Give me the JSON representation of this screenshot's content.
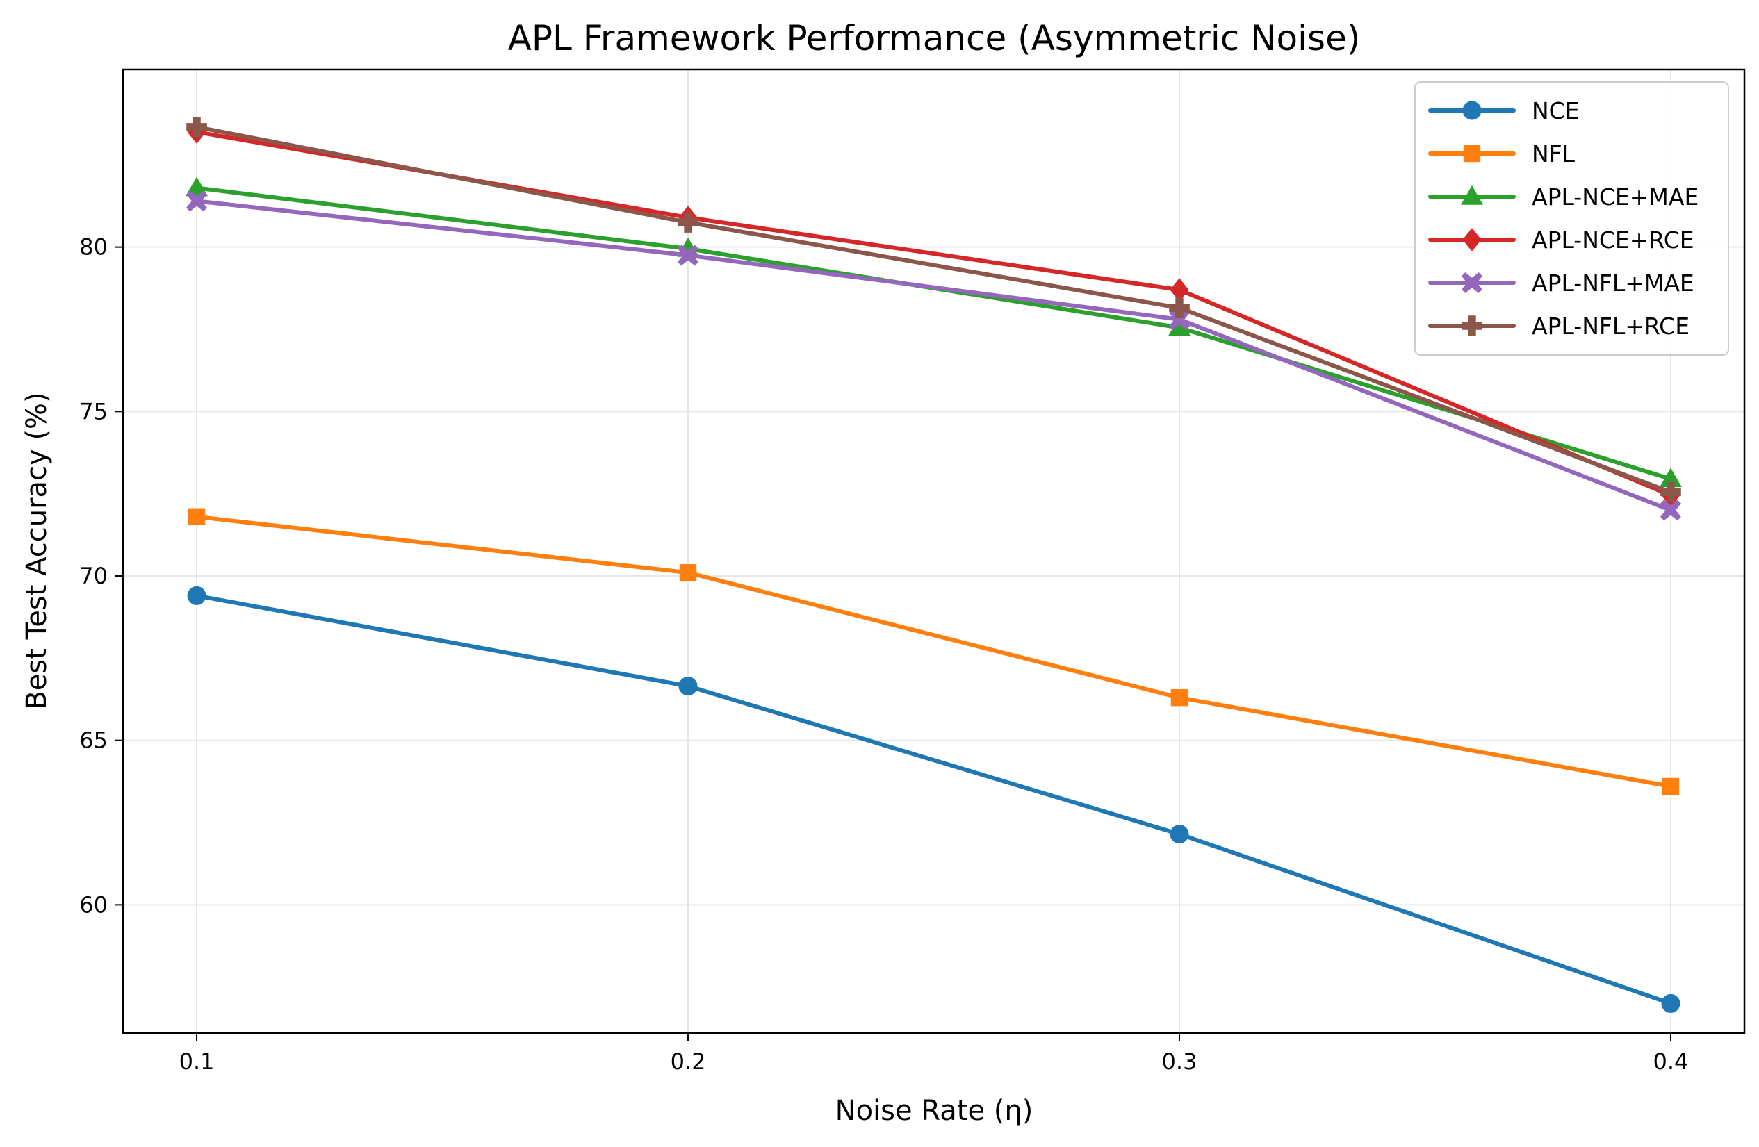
{
  "chart_data": {
    "type": "line",
    "title": "APL Framework Performance (Asymmetric Noise)",
    "xlabel": "Noise Rate (η)",
    "ylabel": "Best Test Accuracy (%)",
    "x": [
      0.1,
      0.2,
      0.3,
      0.4
    ],
    "x_tick_labels": [
      "0.1",
      "0.2",
      "0.3",
      "0.4"
    ],
    "y_ticks": [
      60,
      65,
      70,
      75,
      80
    ],
    "y_tick_labels": [
      "60",
      "65",
      "70",
      "75",
      "80"
    ],
    "xlim": [
      0.085,
      0.415
    ],
    "ylim": [
      56.1,
      85.4
    ],
    "grid": true,
    "legend_position": "top-right",
    "series": [
      {
        "name": "NCE",
        "color": "#1f77b4",
        "marker": "circle",
        "values": [
          69.4,
          66.65,
          62.15,
          57.0
        ]
      },
      {
        "name": "NFL",
        "color": "#ff7f0e",
        "marker": "square",
        "values": [
          71.8,
          70.1,
          66.3,
          63.6
        ]
      },
      {
        "name": "APL-NCE+MAE",
        "color": "#2ca02c",
        "marker": "triangle",
        "values": [
          81.8,
          79.95,
          77.55,
          72.95
        ]
      },
      {
        "name": "APL-NCE+RCE",
        "color": "#d62728",
        "marker": "diamond",
        "values": [
          83.5,
          80.9,
          78.7,
          72.45
        ]
      },
      {
        "name": "APL-NFL+MAE",
        "color": "#9467bd",
        "marker": "xfilled",
        "values": [
          81.4,
          79.75,
          77.8,
          72.0
        ]
      },
      {
        "name": "APL-NFL+RCE",
        "color": "#8c564b",
        "marker": "plus",
        "values": [
          83.65,
          80.75,
          78.15,
          72.55
        ]
      }
    ]
  }
}
